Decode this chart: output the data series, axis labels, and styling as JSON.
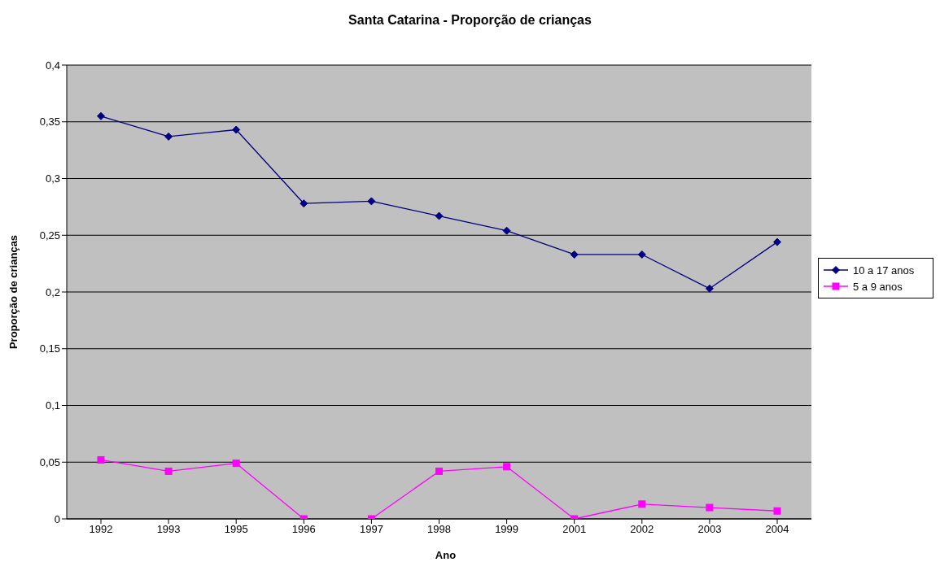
{
  "chart_data": {
    "type": "line",
    "title": "Santa Catarina - Proporção de crianças",
    "xlabel": "Ano",
    "ylabel": "Proporção de crianças",
    "categories": [
      "1992",
      "1993",
      "1995",
      "1996",
      "1997",
      "1998",
      "1999",
      "2001",
      "2002",
      "2003",
      "2004"
    ],
    "series": [
      {
        "name": "10 a 17 anos",
        "color": "#000080",
        "marker": "diamond",
        "values": [
          0.355,
          0.337,
          0.343,
          0.278,
          0.28,
          0.267,
          0.254,
          0.233,
          0.233,
          0.203,
          0.244
        ]
      },
      {
        "name": "5 a 9 anos",
        "color": "#ff00ff",
        "marker": "square",
        "values": [
          0.052,
          0.042,
          0.049,
          0,
          0,
          0.042,
          0.046,
          0,
          0.013,
          0.01,
          0.007
        ]
      }
    ],
    "ylim": [
      0,
      0.4
    ],
    "yticks": [
      {
        "value": 0,
        "label": "0"
      },
      {
        "value": 0.05,
        "label": "0,05"
      },
      {
        "value": 0.1,
        "label": "0,1"
      },
      {
        "value": 0.15,
        "label": "0,15"
      },
      {
        "value": 0.2,
        "label": "0,2"
      },
      {
        "value": 0.25,
        "label": "0,25"
      },
      {
        "value": 0.3,
        "label": "0,3"
      },
      {
        "value": 0.35,
        "label": "0,35"
      },
      {
        "value": 0.4,
        "label": "0,4"
      }
    ],
    "grid": "y",
    "legend": "right",
    "line_style": "solid"
  }
}
